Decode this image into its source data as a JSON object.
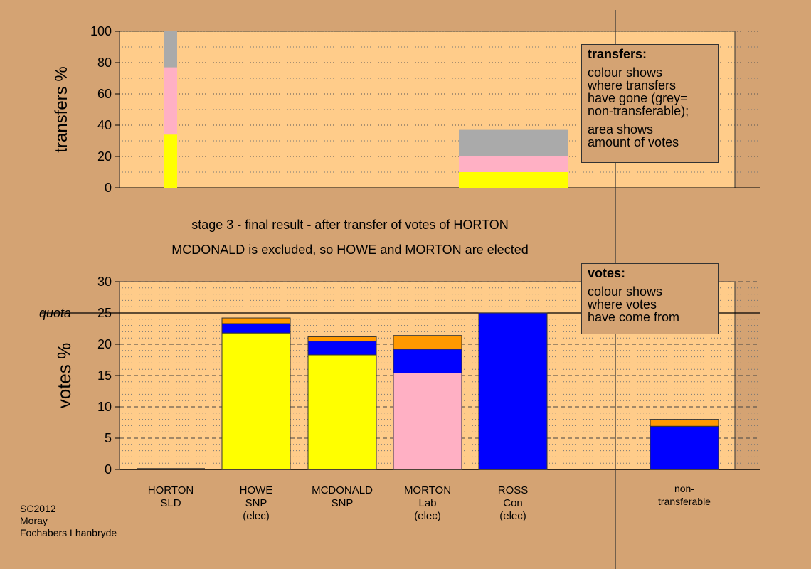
{
  "captions": {
    "line1": "stage 3 - final result - after transfer of votes of HORTON",
    "line2": "MCDONALD is excluded, so HOWE and MORTON are elected"
  },
  "legend_transfers": {
    "title": "transfers:",
    "para1": [
      "colour shows",
      "where transfers",
      "have gone (grey=",
      "non-transferable);"
    ],
    "para2": [
      "area shows",
      "amount of votes"
    ]
  },
  "legend_votes": {
    "title": "votes:",
    "para1": [
      "colour shows",
      "where votes",
      "have come from"
    ]
  },
  "footer": [
    "SC2012",
    "Moray",
    "Fochabers Lhanbryde"
  ],
  "colors": {
    "background": "#d4a373",
    "plot": "#ffcc8a",
    "yellow": "#ffff00",
    "pink": "#ffb0c4",
    "grey": "#aaaaaa",
    "blue": "#0000ff",
    "orange": "#ff9900"
  },
  "chart_data": [
    {
      "type": "bar",
      "name": "transfers",
      "ylabel": "transfers %",
      "ylim": [
        0,
        100
      ],
      "yticks": [
        0,
        20,
        40,
        60,
        80,
        100
      ],
      "bars": [
        {
          "category": "HORTON",
          "segments": [
            {
              "color": "yellow",
              "value": 34
            },
            {
              "color": "pink",
              "value": 43
            },
            {
              "color": "grey",
              "value": 23
            }
          ]
        },
        {
          "category": "MCDONALD",
          "segments": [
            {
              "color": "yellow",
              "value": 10
            },
            {
              "color": "pink",
              "value": 10
            },
            {
              "color": "grey",
              "value": 17
            }
          ]
        }
      ]
    },
    {
      "type": "bar",
      "name": "votes",
      "ylabel": "votes %",
      "ylim": [
        0,
        30
      ],
      "yticks": [
        0,
        5,
        10,
        15,
        20,
        25,
        30
      ],
      "quota": {
        "label": "quota",
        "value": 25
      },
      "categories": [
        {
          "lines": [
            "HORTON",
            "SLD"
          ]
        },
        {
          "lines": [
            "HOWE",
            "SNP",
            "(elec)"
          ]
        },
        {
          "lines": [
            "MCDONALD",
            "SNP"
          ]
        },
        {
          "lines": [
            "MORTON",
            "Lab",
            "(elec)"
          ]
        },
        {
          "lines": [
            "ROSS",
            "Con",
            "(elec)"
          ]
        },
        {
          "lines": [
            "non-",
            "transferable"
          ]
        }
      ],
      "stacks": [
        [],
        [
          {
            "color": "yellow",
            "value": 21.8
          },
          {
            "color": "blue",
            "value": 1.5
          },
          {
            "color": "orange",
            "value": 0.9
          }
        ],
        [
          {
            "color": "yellow",
            "value": 18.3
          },
          {
            "color": "blue",
            "value": 2.2
          },
          {
            "color": "orange",
            "value": 0.7
          }
        ],
        [
          {
            "color": "pink",
            "value": 15.4
          },
          {
            "color": "blue",
            "value": 3.8
          },
          {
            "color": "orange",
            "value": 2.2
          }
        ],
        [
          {
            "color": "blue",
            "value": 25.0
          }
        ],
        [
          {
            "color": "blue",
            "value": 6.9
          },
          {
            "color": "orange",
            "value": 1.1
          }
        ]
      ]
    }
  ]
}
